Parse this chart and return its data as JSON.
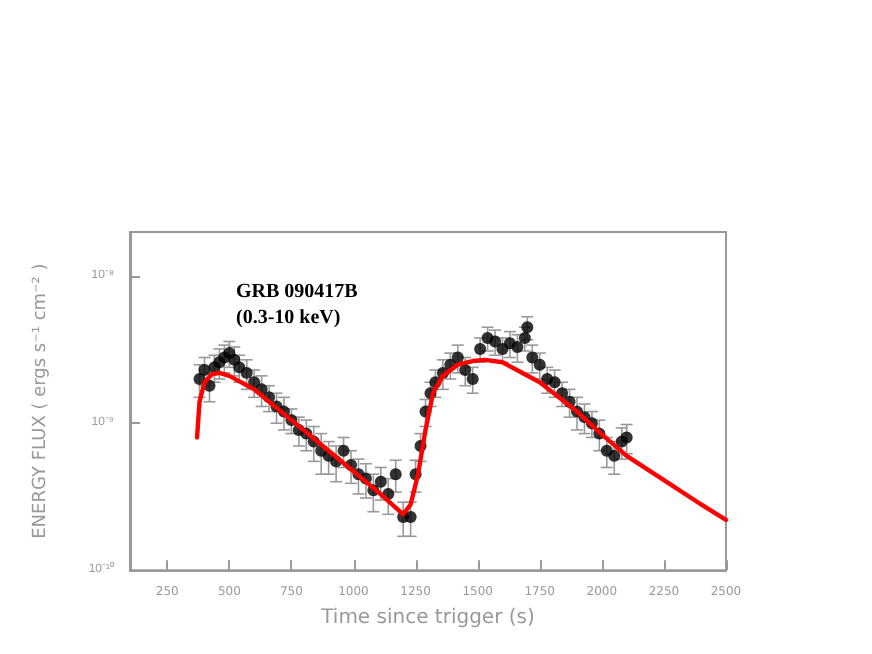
{
  "chart_data": {
    "type": "scatter",
    "xlabel": "Time since trigger (s)",
    "ylabel": "ENERGY FLUX ( ergs s⁻¹ cm⁻² )",
    "annotations": [
      "GRB 090417B",
      "(0.3-10 keV)"
    ],
    "log": "y",
    "grid": false,
    "marker": "circle",
    "xlim": [
      100,
      2500
    ],
    "xticks": [
      250,
      500,
      750,
      1000,
      1250,
      1500,
      1750,
      2000,
      2250,
      2500
    ],
    "ylim": [
      1e-10,
      2e-08
    ],
    "yticks": [
      {
        "value": 1e-10,
        "label": "10⁻¹⁰"
      },
      {
        "value": 1e-09,
        "label": "10⁻⁹"
      },
      {
        "value": 1e-08,
        "label": "10⁻⁸"
      }
    ],
    "series": [
      {
        "color": "#000000",
        "x": [
          380,
          400,
          420,
          440,
          460,
          480,
          500,
          520,
          540,
          570,
          600,
          630,
          660,
          690,
          720,
          750,
          780,
          810,
          840,
          870,
          900,
          930,
          960,
          990,
          1020,
          1050,
          1080,
          1110,
          1140,
          1170,
          1200,
          1230,
          1250,
          1270,
          1290,
          1310,
          1330,
          1360,
          1390,
          1420,
          1450,
          1480,
          1510,
          1540,
          1570,
          1600,
          1630,
          1660,
          1690,
          1700,
          1720,
          1750,
          1780,
          1810,
          1840,
          1870,
          1900,
          1930,
          1960,
          1990,
          2020,
          2050,
          2080,
          2100
        ],
        "values": [
          2e-09,
          2.3e-09,
          1.8e-09,
          2.4e-09,
          2.6e-09,
          2.8e-09,
          3e-09,
          2.7e-09,
          2.4e-09,
          2.2e-09,
          1.9e-09,
          1.7e-09,
          1.5e-09,
          1.3e-09,
          1.2e-09,
          1.05e-09,
          9e-10,
          8.5e-10,
          7.5e-10,
          6.5e-10,
          6e-10,
          5.5e-10,
          6.5e-10,
          5.2e-10,
          4.5e-10,
          4.2e-10,
          3.5e-10,
          4e-10,
          3.3e-10,
          4.5e-10,
          2.3e-10,
          2.3e-10,
          4.5e-10,
          7e-10,
          1.2e-09,
          1.6e-09,
          1.9e-09,
          2.2e-09,
          2.5e-09,
          2.8e-09,
          2.3e-09,
          2e-09,
          3.2e-09,
          3.8e-09,
          3.6e-09,
          3.2e-09,
          3.5e-09,
          3.3e-09,
          3.8e-09,
          4.5e-09,
          2.8e-09,
          2.5e-09,
          2e-09,
          1.9e-09,
          1.6e-09,
          1.4e-09,
          1.2e-09,
          1.1e-09,
          1e-09,
          8.5e-10,
          6.5e-10,
          6e-10,
          7.5e-10,
          8e-10
        ],
        "errors": [
          5e-10,
          5e-10,
          4e-10,
          5e-10,
          6e-10,
          6e-10,
          6e-10,
          6e-10,
          5e-10,
          5e-10,
          4e-10,
          4e-10,
          3e-10,
          3e-10,
          3e-10,
          2e-10,
          2e-10,
          2e-10,
          2e-10,
          2e-10,
          1.5e-10,
          1.5e-10,
          1.5e-10,
          1.3e-10,
          1.2e-10,
          1.1e-10,
          1e-10,
          1e-10,
          9e-11,
          1.1e-10,
          6e-11,
          6e-11,
          1.1e-10,
          1.5e-10,
          2.5e-10,
          3e-10,
          4e-10,
          5e-10,
          5e-10,
          6e-10,
          5e-10,
          4e-10,
          6e-10,
          7e-10,
          7e-10,
          6e-10,
          7e-10,
          7e-10,
          7e-10,
          8e-10,
          6e-10,
          5e-10,
          4e-10,
          4e-10,
          3e-10,
          3e-10,
          3e-10,
          2.5e-10,
          2e-10,
          2e-10,
          1.5e-10,
          1.5e-10,
          1.8e-10,
          1.8e-10
        ]
      },
      {
        "type": "line",
        "marker": "none",
        "color": "#ff0000",
        "x": [
          370,
          380,
          400,
          430,
          460,
          500,
          600,
          750,
          900,
          1000,
          1100,
          1200,
          1230,
          1260,
          1290,
          1320,
          1360,
          1420,
          1480,
          1530,
          1600,
          1750,
          1900,
          2000,
          2100,
          2250,
          2400,
          2500
        ],
        "values": [
          8e-10,
          1.4e-09,
          1.9e-09,
          2.15e-09,
          2.2e-09,
          2.1e-09,
          1.7e-09,
          1.05e-09,
          6.5e-10,
          4.7e-10,
          3.4e-10,
          2.4e-10,
          2.8e-10,
          4.5e-10,
          9e-10,
          1.6e-09,
          2.1e-09,
          2.5e-09,
          2.65e-09,
          2.7e-09,
          2.6e-09,
          1.9e-09,
          1.2e-09,
          8.4e-10,
          6e-10,
          4.1e-10,
          2.8e-10,
          2.2e-10
        ]
      }
    ]
  }
}
